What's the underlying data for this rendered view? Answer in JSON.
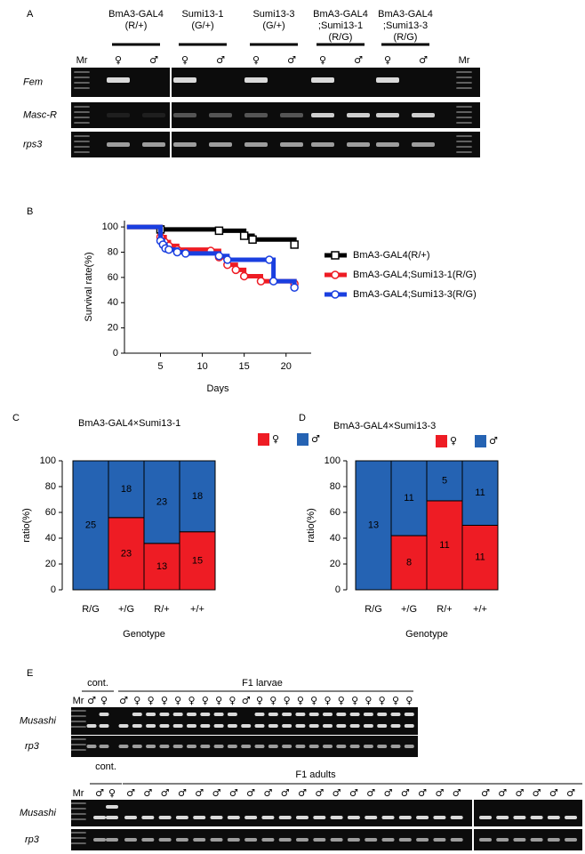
{
  "panel_labels": [
    "A",
    "B",
    "C",
    "D",
    "E"
  ],
  "gel_a": {
    "markers": [
      "Mr",
      "Mr"
    ],
    "rows": [
      "Fem",
      "Masc-R",
      "rps3"
    ],
    "groups": [
      {
        "label": [
          "BmA3-GAL4",
          "(R/+)"
        ],
        "sexes": [
          "♀",
          "♂"
        ]
      },
      {
        "label": [
          "Sumi13-1",
          "(G/+)"
        ],
        "sexes": [
          "♀",
          "♂"
        ]
      },
      {
        "label": [
          "Sumi13-3",
          "(G/+)"
        ],
        "sexes": [
          "♀",
          "♂"
        ]
      },
      {
        "label": [
          "BmA3-GAL4",
          ";Sumi13-1",
          "(R/G)"
        ],
        "sexes": [
          "♀",
          "♂"
        ]
      },
      {
        "label": [
          "BmA3-GAL4",
          ";Sumi13-3",
          "(R/G)"
        ],
        "sexes": [
          "♀",
          "♂"
        ]
      }
    ]
  },
  "chart_data": [
    {
      "type": "line",
      "step": true,
      "x_label": "Days",
      "y_label": "Survival rate(%)",
      "xlim": [
        0.7,
        23
      ],
      "xticks": [
        5,
        10,
        15,
        20
      ],
      "ylim": [
        0,
        105
      ],
      "yticks": [
        0,
        20,
        40,
        60,
        80,
        100
      ],
      "series": [
        {
          "name": "BmA3-GAL4(R/+)",
          "color": "#000000",
          "marker": "square",
          "x": [
            1,
            5,
            12,
            15,
            16,
            21
          ],
          "values": [
            100,
            98,
            97,
            93,
            90,
            86
          ]
        },
        {
          "name": "BmA3-GAL4;Sumi13-1(R/G)",
          "color": "#ee1c24",
          "marker": "circle",
          "x": [
            1,
            5,
            5.5,
            6,
            7,
            11,
            12,
            13,
            14,
            15,
            17,
            21
          ],
          "values": [
            100,
            92,
            88,
            85,
            82,
            81,
            76,
            70,
            66,
            61,
            57,
            55
          ]
        },
        {
          "name": "BmA3-GAL4;Sumi13-3(R/G)",
          "color": "#1a3fe0",
          "marker": "circle",
          "x": [
            1,
            5,
            5.3,
            5.6,
            6,
            7,
            8,
            12,
            13,
            18,
            18.5,
            21
          ],
          "values": [
            100,
            89,
            86,
            83,
            82,
            80,
            79,
            77,
            74,
            74,
            57,
            52
          ]
        }
      ]
    },
    {
      "type": "bar",
      "stacked": true,
      "title": "BmA3-GAL4×Sumi13-1",
      "x_label": "Genotype",
      "y_label": "ratio(%)",
      "categories": [
        "R/G",
        "+/G",
        "R/+",
        "+/+"
      ],
      "ylim": [
        0,
        100
      ],
      "yticks": [
        0,
        20,
        40,
        60,
        80,
        100
      ],
      "series": [
        {
          "name": "♀",
          "color": "#ee1c24",
          "values": [
            0,
            56,
            36,
            45
          ],
          "counts": [
            null,
            23,
            13,
            15
          ]
        },
        {
          "name": "♂",
          "color": "#2563b3",
          "values": [
            100,
            44,
            64,
            55
          ],
          "counts": [
            25,
            18,
            23,
            18
          ]
        }
      ]
    },
    {
      "type": "bar",
      "stacked": true,
      "title": "BmA3-GAL4×Sumi13-3",
      "x_label": "Genotype",
      "y_label": "ratio(%)",
      "categories": [
        "R/G",
        "+/G",
        "R/+",
        "+/+"
      ],
      "ylim": [
        0,
        100
      ],
      "yticks": [
        0,
        20,
        40,
        60,
        80,
        100
      ],
      "series": [
        {
          "name": "♀",
          "color": "#ee1c24",
          "values": [
            0,
            42,
            69,
            50
          ],
          "counts": [
            null,
            8,
            11,
            11
          ]
        },
        {
          "name": "♂",
          "color": "#2563b3",
          "values": [
            100,
            58,
            31,
            50
          ],
          "counts": [
            13,
            11,
            5,
            11
          ]
        }
      ]
    }
  ],
  "gel_e": {
    "larvae": {
      "marker": "Mr",
      "control_label": "cont.",
      "title": "F1 larvae",
      "control_sexes": [
        "♂",
        "♀"
      ],
      "lane_groups": [
        [
          "♂",
          "♀",
          "♀",
          "♀",
          "♀",
          "♀",
          "♀",
          "♀",
          "♀",
          "♂",
          "♀",
          "♀",
          "♀",
          "♀",
          "♀",
          "♀",
          "♀",
          "♀",
          "♀",
          "♀",
          "♀",
          "♀"
        ]
      ],
      "rows": [
        "Musashi",
        "rp3"
      ]
    },
    "adults": {
      "marker": "Mr",
      "control_label": "cont.",
      "title": "F1 adults",
      "control_sexes": [
        "♂",
        "♀"
      ],
      "lane_groups": [
        [
          "♂",
          "♂",
          "♂",
          "♂",
          "♂",
          "♂",
          "♂",
          "♂",
          "♂",
          "♂",
          "♂",
          "♂",
          "♂",
          "♂",
          "♂",
          "♂",
          "♂",
          "♂",
          "♂",
          "♂"
        ],
        [
          "♂",
          "♂",
          "♂",
          "♂",
          "♂",
          "♂"
        ]
      ],
      "rows": [
        "Musashi",
        "rp3"
      ]
    }
  }
}
